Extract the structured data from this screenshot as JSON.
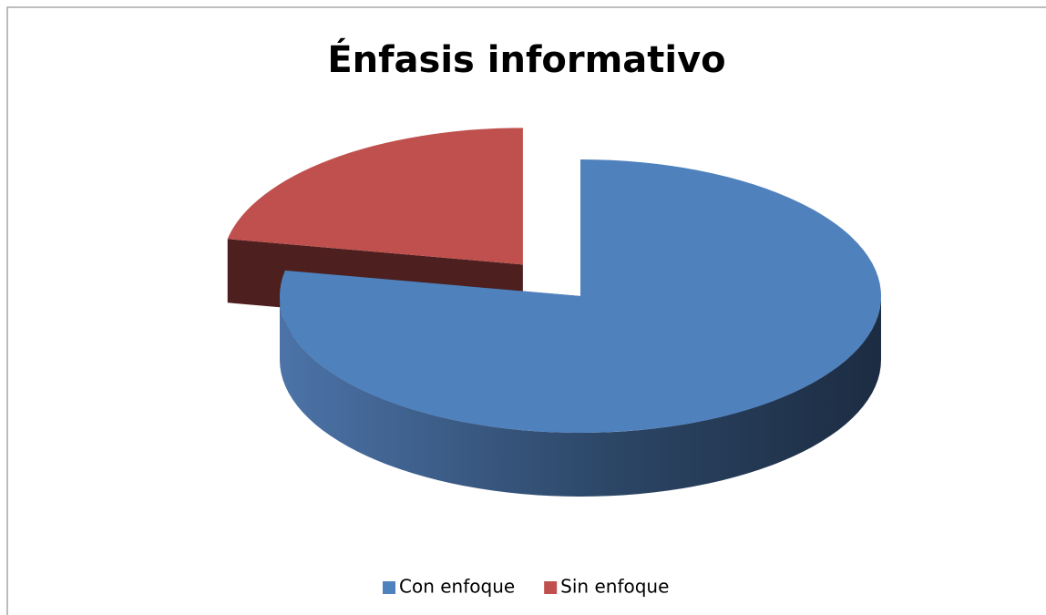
{
  "chart_data": {
    "type": "pie",
    "title": "Énfasis informativo",
    "categories": [
      "Con enfoque",
      "Sin enfoque"
    ],
    "values": [
      78,
      22
    ],
    "colors": [
      "#4f81bd",
      "#c0504d"
    ],
    "explode": [
      false,
      true
    ],
    "legend": "bottom"
  }
}
